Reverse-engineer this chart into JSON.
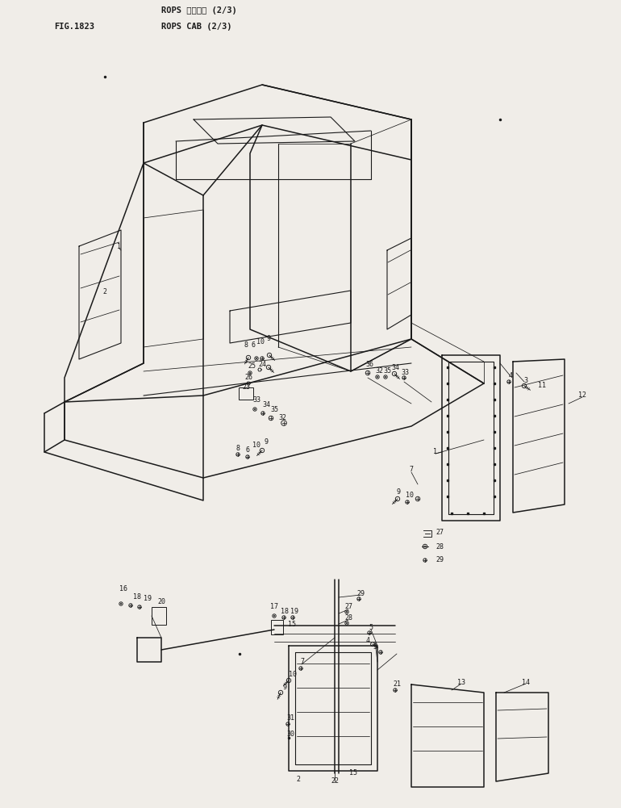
{
  "title_line1": "ROPS キャブ゚ (2/3)",
  "title_line2": "ROPS CAB (2/3)",
  "fig_label": "FIG.1823",
  "bg_color": "#f0ede8",
  "line_color": "#1a1a1a",
  "text_color": "#1a1a1a",
  "fig_width": 7.7,
  "fig_height": 10.01,
  "dpi": 100
}
